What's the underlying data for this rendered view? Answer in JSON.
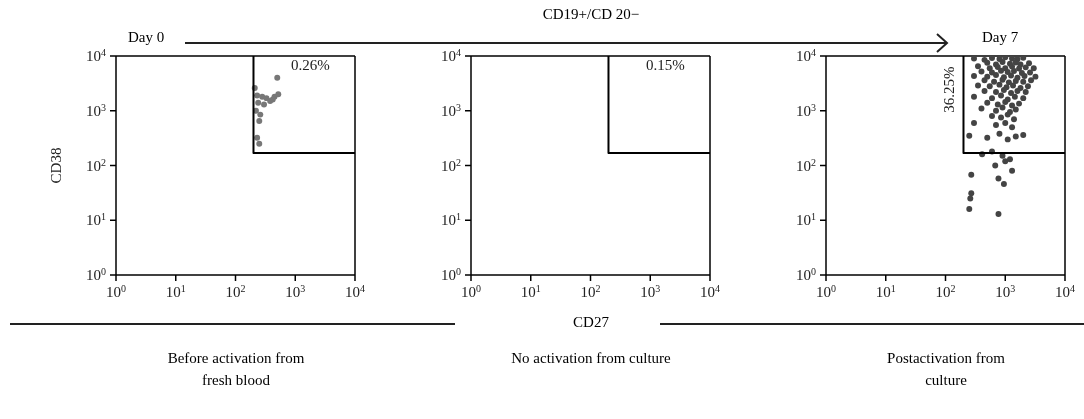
{
  "chart_data": [
    {
      "type": "scatter",
      "ylabel": "CD38",
      "subtitle": "Before activation from fresh blood",
      "annotations": [
        "Day 0",
        "0.26%"
      ],
      "log": "xy",
      "grid": false,
      "legend": false,
      "xlim": [
        1,
        10000
      ],
      "ylim": [
        1,
        10000
      ],
      "xticks": [
        {
          "value": 1,
          "label": "10$^{0}$"
        },
        {
          "value": 10,
          "label": "10$^{1}$"
        },
        {
          "value": 100,
          "label": "10$^{2}$"
        },
        {
          "value": 1000,
          "label": "10$^{3}$"
        },
        {
          "value": 10000,
          "label": "10$^{4}$"
        }
      ],
      "yticks": [
        {
          "value": 1,
          "label": "10$^{0}$"
        },
        {
          "value": 10,
          "label": "10$^{1}$"
        },
        {
          "value": 100,
          "label": "10$^{2}$"
        },
        {
          "value": 1000,
          "label": "10$^{3}$"
        },
        {
          "value": 10000,
          "label": "10$^{4}$"
        }
      ],
      "series": [
        {
          "type": "scatter",
          "marker": "circle",
          "color": "#777777",
          "x": [
            500,
            210,
            230,
            280,
            330,
            450,
            520,
            240,
            300,
            380,
            220,
            260,
            250,
            230,
            250,
            420
          ],
          "values": [
            4000,
            2600,
            1900,
            1800,
            1700,
            1800,
            2000,
            1400,
            1300,
            1500,
            1000,
            850,
            650,
            320,
            250,
            1600
          ]
        },
        {
          "type": "line",
          "marker": "none",
          "color": "#000000",
          "x": [
            200,
            200,
            10000
          ],
          "values": [
            10000,
            170,
            170
          ]
        }
      ]
    },
    {
      "type": "scatter",
      "title": "CD19+/CD 20−",
      "xlabel": "CD27",
      "subtitle": "No activation from culture",
      "annotations": [
        "0.15%"
      ],
      "log": "xy",
      "grid": false,
      "legend": false,
      "xlim": [
        1,
        10000
      ],
      "ylim": [
        1,
        10000
      ],
      "xticks": [
        {
          "value": 1,
          "label": "10$^{0}$"
        },
        {
          "value": 10,
          "label": "10$^{1}$"
        },
        {
          "value": 100,
          "label": "10$^{2}$"
        },
        {
          "value": 1000,
          "label": "10$^{3}$"
        },
        {
          "value": 10000,
          "label": "10$^{4}$"
        }
      ],
      "yticks": [
        {
          "value": 1,
          "label": "10$^{0}$"
        },
        {
          "value": 10,
          "label": "10$^{1}$"
        },
        {
          "value": 100,
          "label": "10$^{2}$"
        },
        {
          "value": 1000,
          "label": "10$^{3}$"
        },
        {
          "value": 10000,
          "label": "10$^{4}$"
        }
      ],
      "series": [
        {
          "type": "line",
          "marker": "none",
          "color": "#000000",
          "x": [
            200,
            200,
            10000
          ],
          "values": [
            10000,
            170,
            170
          ]
        }
      ]
    },
    {
      "type": "scatter",
      "subtitle": "Postactivation from culture",
      "annotations": [
        "Day 7",
        "36.25%"
      ],
      "log": "xy",
      "grid": false,
      "legend": false,
      "xlim": [
        1,
        10000
      ],
      "ylim": [
        1,
        10000
      ],
      "xticks": [
        {
          "value": 1,
          "label": "10$^{0}$"
        },
        {
          "value": 10,
          "label": "10$^{1}$"
        },
        {
          "value": 100,
          "label": "10$^{2}$"
        },
        {
          "value": 1000,
          "label": "10$^{3}$"
        },
        {
          "value": 10000,
          "label": "10$^{4}$"
        }
      ],
      "yticks": [
        {
          "value": 1,
          "label": "10$^{0}$"
        },
        {
          "value": 10,
          "label": "10$^{1}$"
        },
        {
          "value": 100,
          "label": "10$^{2}$"
        },
        {
          "value": 1000,
          "label": "10$^{3}$"
        },
        {
          "value": 10000,
          "label": "10$^{4}$"
        }
      ],
      "series": [
        {
          "type": "scatter",
          "marker": "circle",
          "color": "#444444",
          "x": [
            300,
            450,
            600,
            800,
            1000,
            1300,
            1600,
            2000,
            500,
            700,
            900,
            1200,
            1500,
            1800,
            2500,
            350,
            550,
            750,
            1000,
            1300,
            1700,
            2200,
            3000,
            400,
            600,
            850,
            1100,
            1400,
            1900,
            2600,
            300,
            500,
            700,
            950,
            1250,
            1600,
            2100,
            3200,
            450,
            650,
            900,
            1150,
            1500,
            2000,
            2700,
            350,
            550,
            800,
            1050,
            1350,
            1800,
            2400,
            450,
            700,
            950,
            1250,
            1600,
            2200,
            300,
            600,
            850,
            1100,
            1450,
            2000,
            500,
            750,
            1000,
            1300,
            1700,
            400,
            700,
            900,
            1200,
            1500,
            600,
            850,
            1100,
            1400,
            300,
            700,
            1000,
            1300,
            250,
            500,
            800,
            1100,
            1500,
            2000,
            410,
            680,
            900,
            1200,
            770,
            950,
            1300,
            270,
            270,
            260,
            250,
            770,
            1000,
            600
          ],
          "values": [
            9000,
            8500,
            9200,
            8800,
            9500,
            9000,
            8700,
            9300,
            7500,
            7000,
            7800,
            7200,
            7600,
            7000,
            7400,
            6500,
            6000,
            6300,
            6000,
            6400,
            5900,
            6200,
            6000,
            5200,
            5000,
            5400,
            5100,
            5300,
            4900,
            5000,
            4300,
            4200,
            4500,
            4100,
            4400,
            4000,
            4300,
            4200,
            3600,
            3400,
            3700,
            3300,
            3500,
            3400,
            3600,
            2900,
            2800,
            3000,
            2700,
            2900,
            2600,
            2800,
            2300,
            2200,
            2400,
            2100,
            2300,
            2200,
            1800,
            1700,
            1900,
            1600,
            1800,
            1700,
            1400,
            1300,
            1450,
            1250,
            1350,
            1100,
            1000,
            1150,
            950,
            1050,
            800,
            750,
            850,
            700,
            600,
            550,
            600,
            500,
            350,
            320,
            380,
            300,
            340,
            360,
            160,
            100,
            150,
            130,
            58,
            46,
            80,
            68,
            31,
            25,
            16,
            13,
            120,
            180
          ]
        },
        {
          "type": "line",
          "marker": "none",
          "color": "#000000",
          "x": [
            200,
            200,
            10000
          ],
          "values": [
            10000,
            170,
            170
          ]
        }
      ]
    }
  ]
}
